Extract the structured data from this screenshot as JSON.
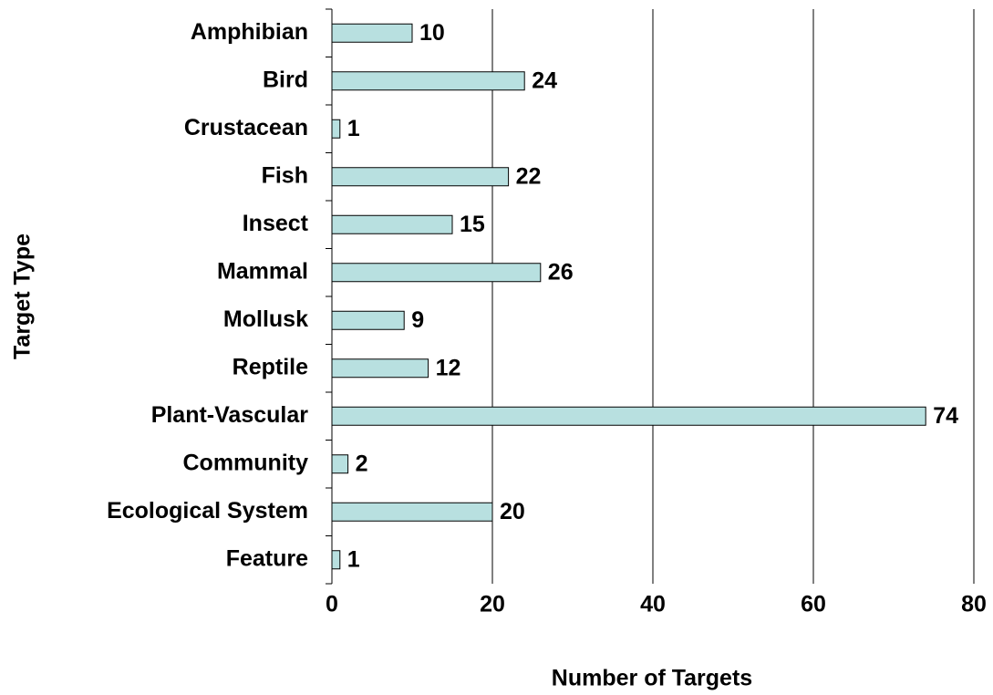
{
  "chart_data": {
    "type": "bar",
    "orientation": "horizontal",
    "x_label": "Number of Targets",
    "y_label": "Target Type",
    "categories": [
      "Amphibian",
      "Bird",
      "Crustacean",
      "Fish",
      "Insect",
      "Mammal",
      "Mollusk",
      "Reptile",
      "Plant-Vascular",
      "Community",
      "Ecological System",
      "Feature"
    ],
    "values": [
      10,
      24,
      1,
      22,
      15,
      26,
      9,
      12,
      74,
      2,
      20,
      1
    ],
    "color": "#b8e0e0",
    "xlim": [
      0,
      80
    ],
    "xticks": [
      0,
      20,
      40,
      60,
      80
    ],
    "grid": true
  }
}
